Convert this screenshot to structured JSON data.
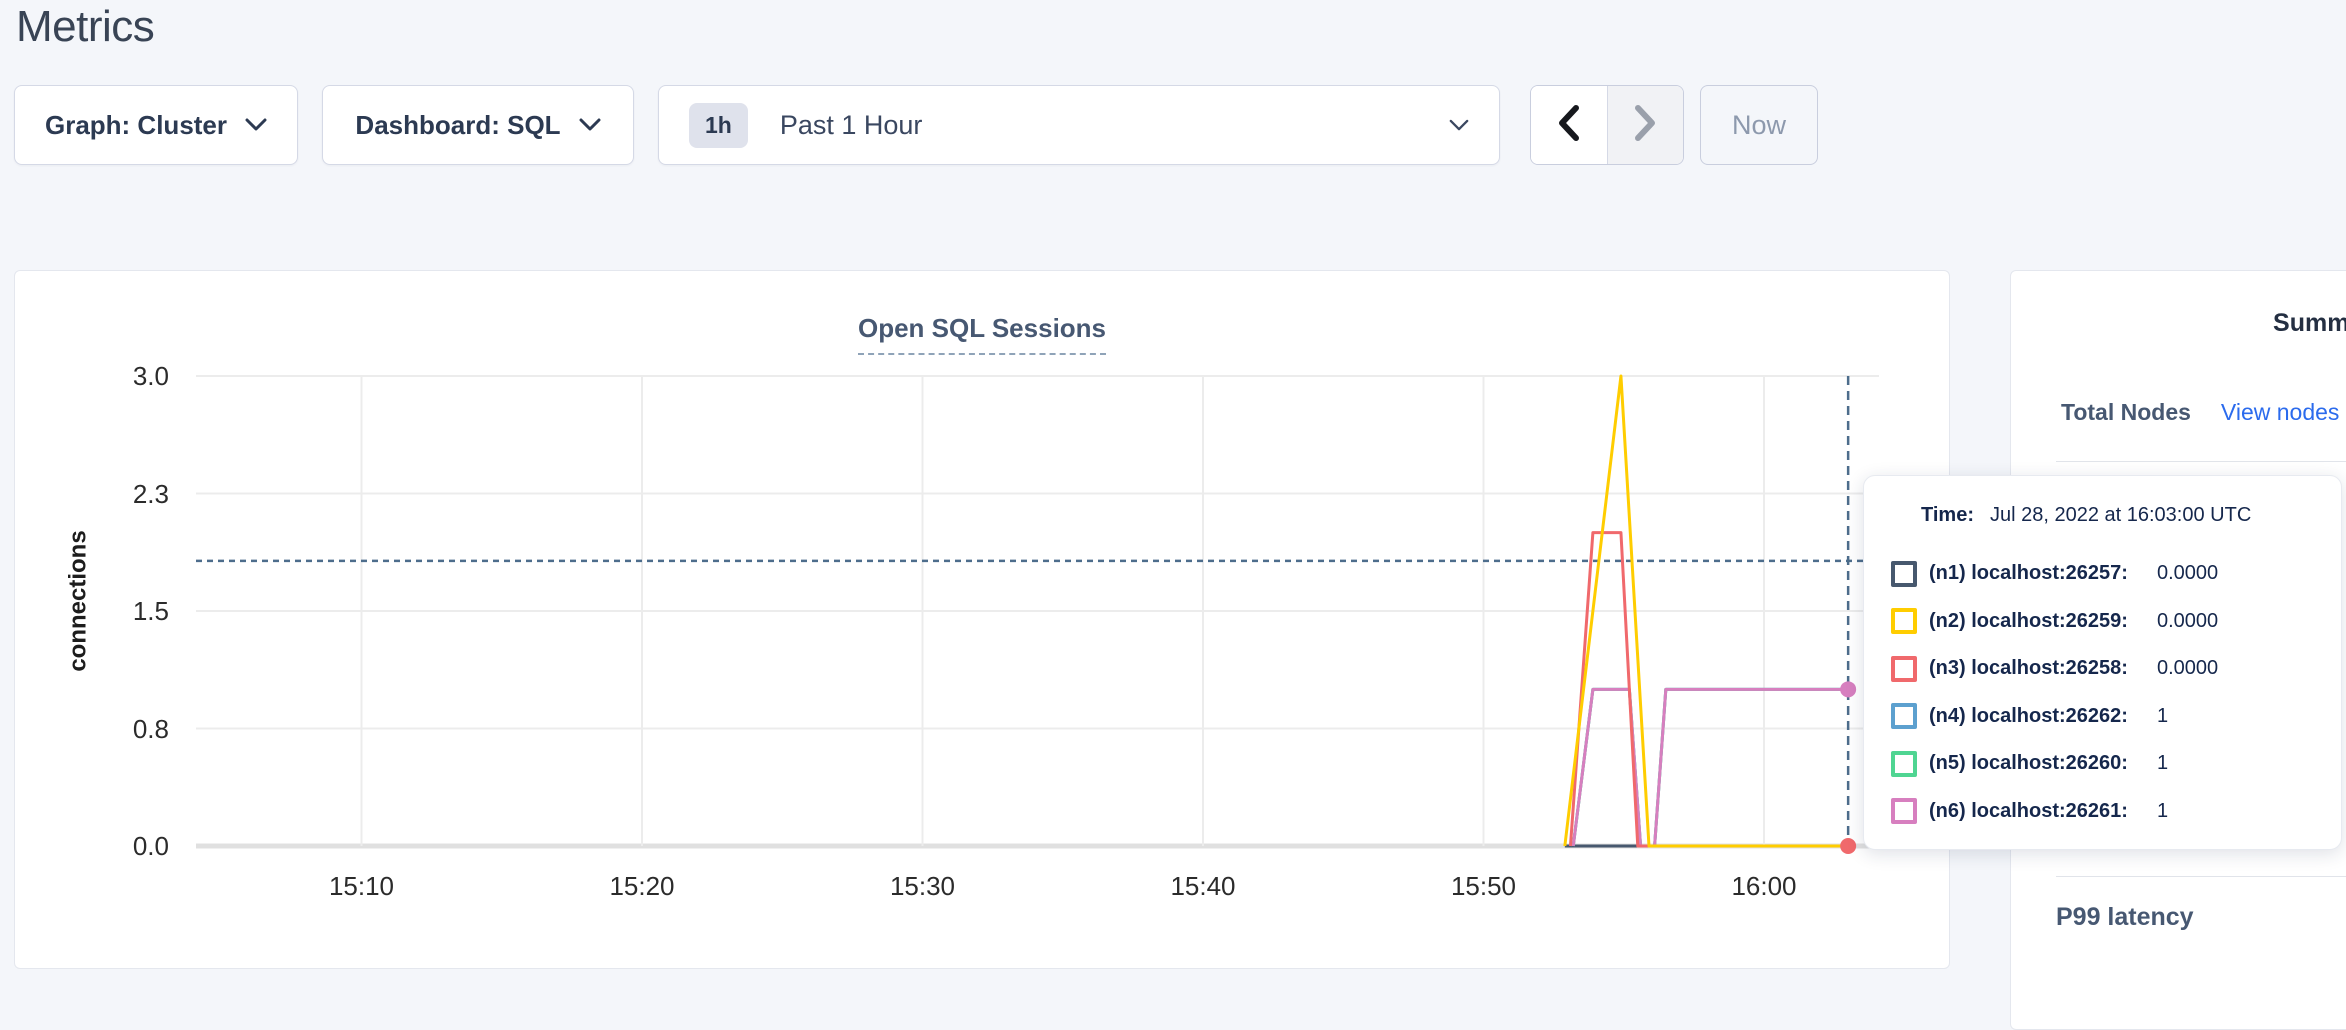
{
  "page": {
    "title": "Metrics"
  },
  "toolbar": {
    "graph_dropdown_label": "Graph: Cluster",
    "dashboard_dropdown_label": "Dashboard: SQL",
    "time_window": {
      "badge": "1h",
      "label": "Past 1 Hour"
    },
    "now_button_label": "Now"
  },
  "chart": {
    "title": "Open SQL Sessions",
    "ylabel": "connections"
  },
  "chart_data": {
    "type": "line",
    "title": "Open SQL Sessions",
    "ylabel": "connections",
    "x_unit": "minutes after 15:00 UTC",
    "x_domain_minutes": [
      4.1,
      64.1
    ],
    "ylim": [
      0,
      3
    ],
    "grid": true,
    "x_ticks": [
      {
        "t": 10,
        "label": "15:10"
      },
      {
        "t": 20,
        "label": "15:20"
      },
      {
        "t": 30,
        "label": "15:30"
      },
      {
        "t": 40,
        "label": "15:40"
      },
      {
        "t": 50,
        "label": "15:50"
      },
      {
        "t": 60,
        "label": "16:00"
      }
    ],
    "y_ticks": [
      {
        "v": 0,
        "label": "0.0"
      },
      {
        "v": 0.75,
        "label": "0.8"
      },
      {
        "v": 1.5,
        "label": "1.5"
      },
      {
        "v": 2.25,
        "label": "2.3"
      },
      {
        "v": 3,
        "label": "3.0"
      }
    ],
    "series": [
      {
        "name": "(n1) localhost:26257",
        "color": "#47586e",
        "end_dot": false,
        "points": [
          [
            52.9,
            0
          ],
          [
            63,
            0
          ]
        ]
      },
      {
        "name": "(n4) localhost:26262",
        "color": "#5ca0cf",
        "end_dot": false,
        "points": [
          [
            53.2,
            0
          ],
          [
            53.9,
            1
          ],
          [
            55.2,
            1
          ],
          [
            55.6,
            0
          ],
          [
            56.1,
            0
          ],
          [
            56.5,
            1
          ],
          [
            63,
            1
          ]
        ]
      },
      {
        "name": "(n5) localhost:26260",
        "color": "#4fd592",
        "end_dot": false,
        "points": [
          [
            53.2,
            0
          ],
          [
            53.9,
            1
          ],
          [
            55.2,
            1
          ],
          [
            55.6,
            0
          ],
          [
            56.1,
            0
          ],
          [
            56.5,
            1
          ],
          [
            63,
            1
          ]
        ]
      },
      {
        "name": "(n6) localhost:26261",
        "color": "#d77fbf",
        "end_dot": true,
        "points": [
          [
            53.2,
            0
          ],
          [
            53.9,
            1
          ],
          [
            55.2,
            1
          ],
          [
            55.6,
            0
          ],
          [
            56.1,
            0
          ],
          [
            56.5,
            1
          ],
          [
            63,
            1
          ]
        ]
      },
      {
        "name": "(n3) localhost:26258",
        "color": "#f0696c",
        "end_dot": true,
        "points": [
          [
            53.1,
            0
          ],
          [
            53.9,
            2
          ],
          [
            54.9,
            2
          ],
          [
            55.5,
            0
          ],
          [
            63,
            0
          ]
        ]
      },
      {
        "name": "(n2) localhost:26259",
        "color": "#ffcd00",
        "end_dot": false,
        "points": [
          [
            52.9,
            0
          ],
          [
            54.9,
            3
          ],
          [
            55.9,
            0
          ],
          [
            63,
            0
          ]
        ]
      }
    ],
    "crosshair": {
      "t": 63,
      "v": 1.82,
      "color": "#4d6d8c"
    }
  },
  "tooltip": {
    "time_label": "Time:",
    "time_value": "Jul 28, 2022 at 16:03:00 UTC",
    "rows": [
      {
        "label": "(n1) localhost:26257:",
        "value": "0.0000",
        "color": "#47586e"
      },
      {
        "label": "(n2) localhost:26259:",
        "value": "0.0000",
        "color": "#ffcd00"
      },
      {
        "label": "(n3) localhost:26258:",
        "value": "0.0000",
        "color": "#f0696c"
      },
      {
        "label": "(n4) localhost:26262:",
        "value": "1",
        "color": "#5ca0cf"
      },
      {
        "label": "(n5) localhost:26260:",
        "value": "1",
        "color": "#4fd592"
      },
      {
        "label": "(n6) localhost:26261:",
        "value": "1",
        "color": "#d77fbf"
      }
    ]
  },
  "sidebar": {
    "heading": "Summary",
    "total_nodes_label": "Total Nodes",
    "view_nodes_link": "View nodes",
    "p99_label": "P99 latency"
  }
}
